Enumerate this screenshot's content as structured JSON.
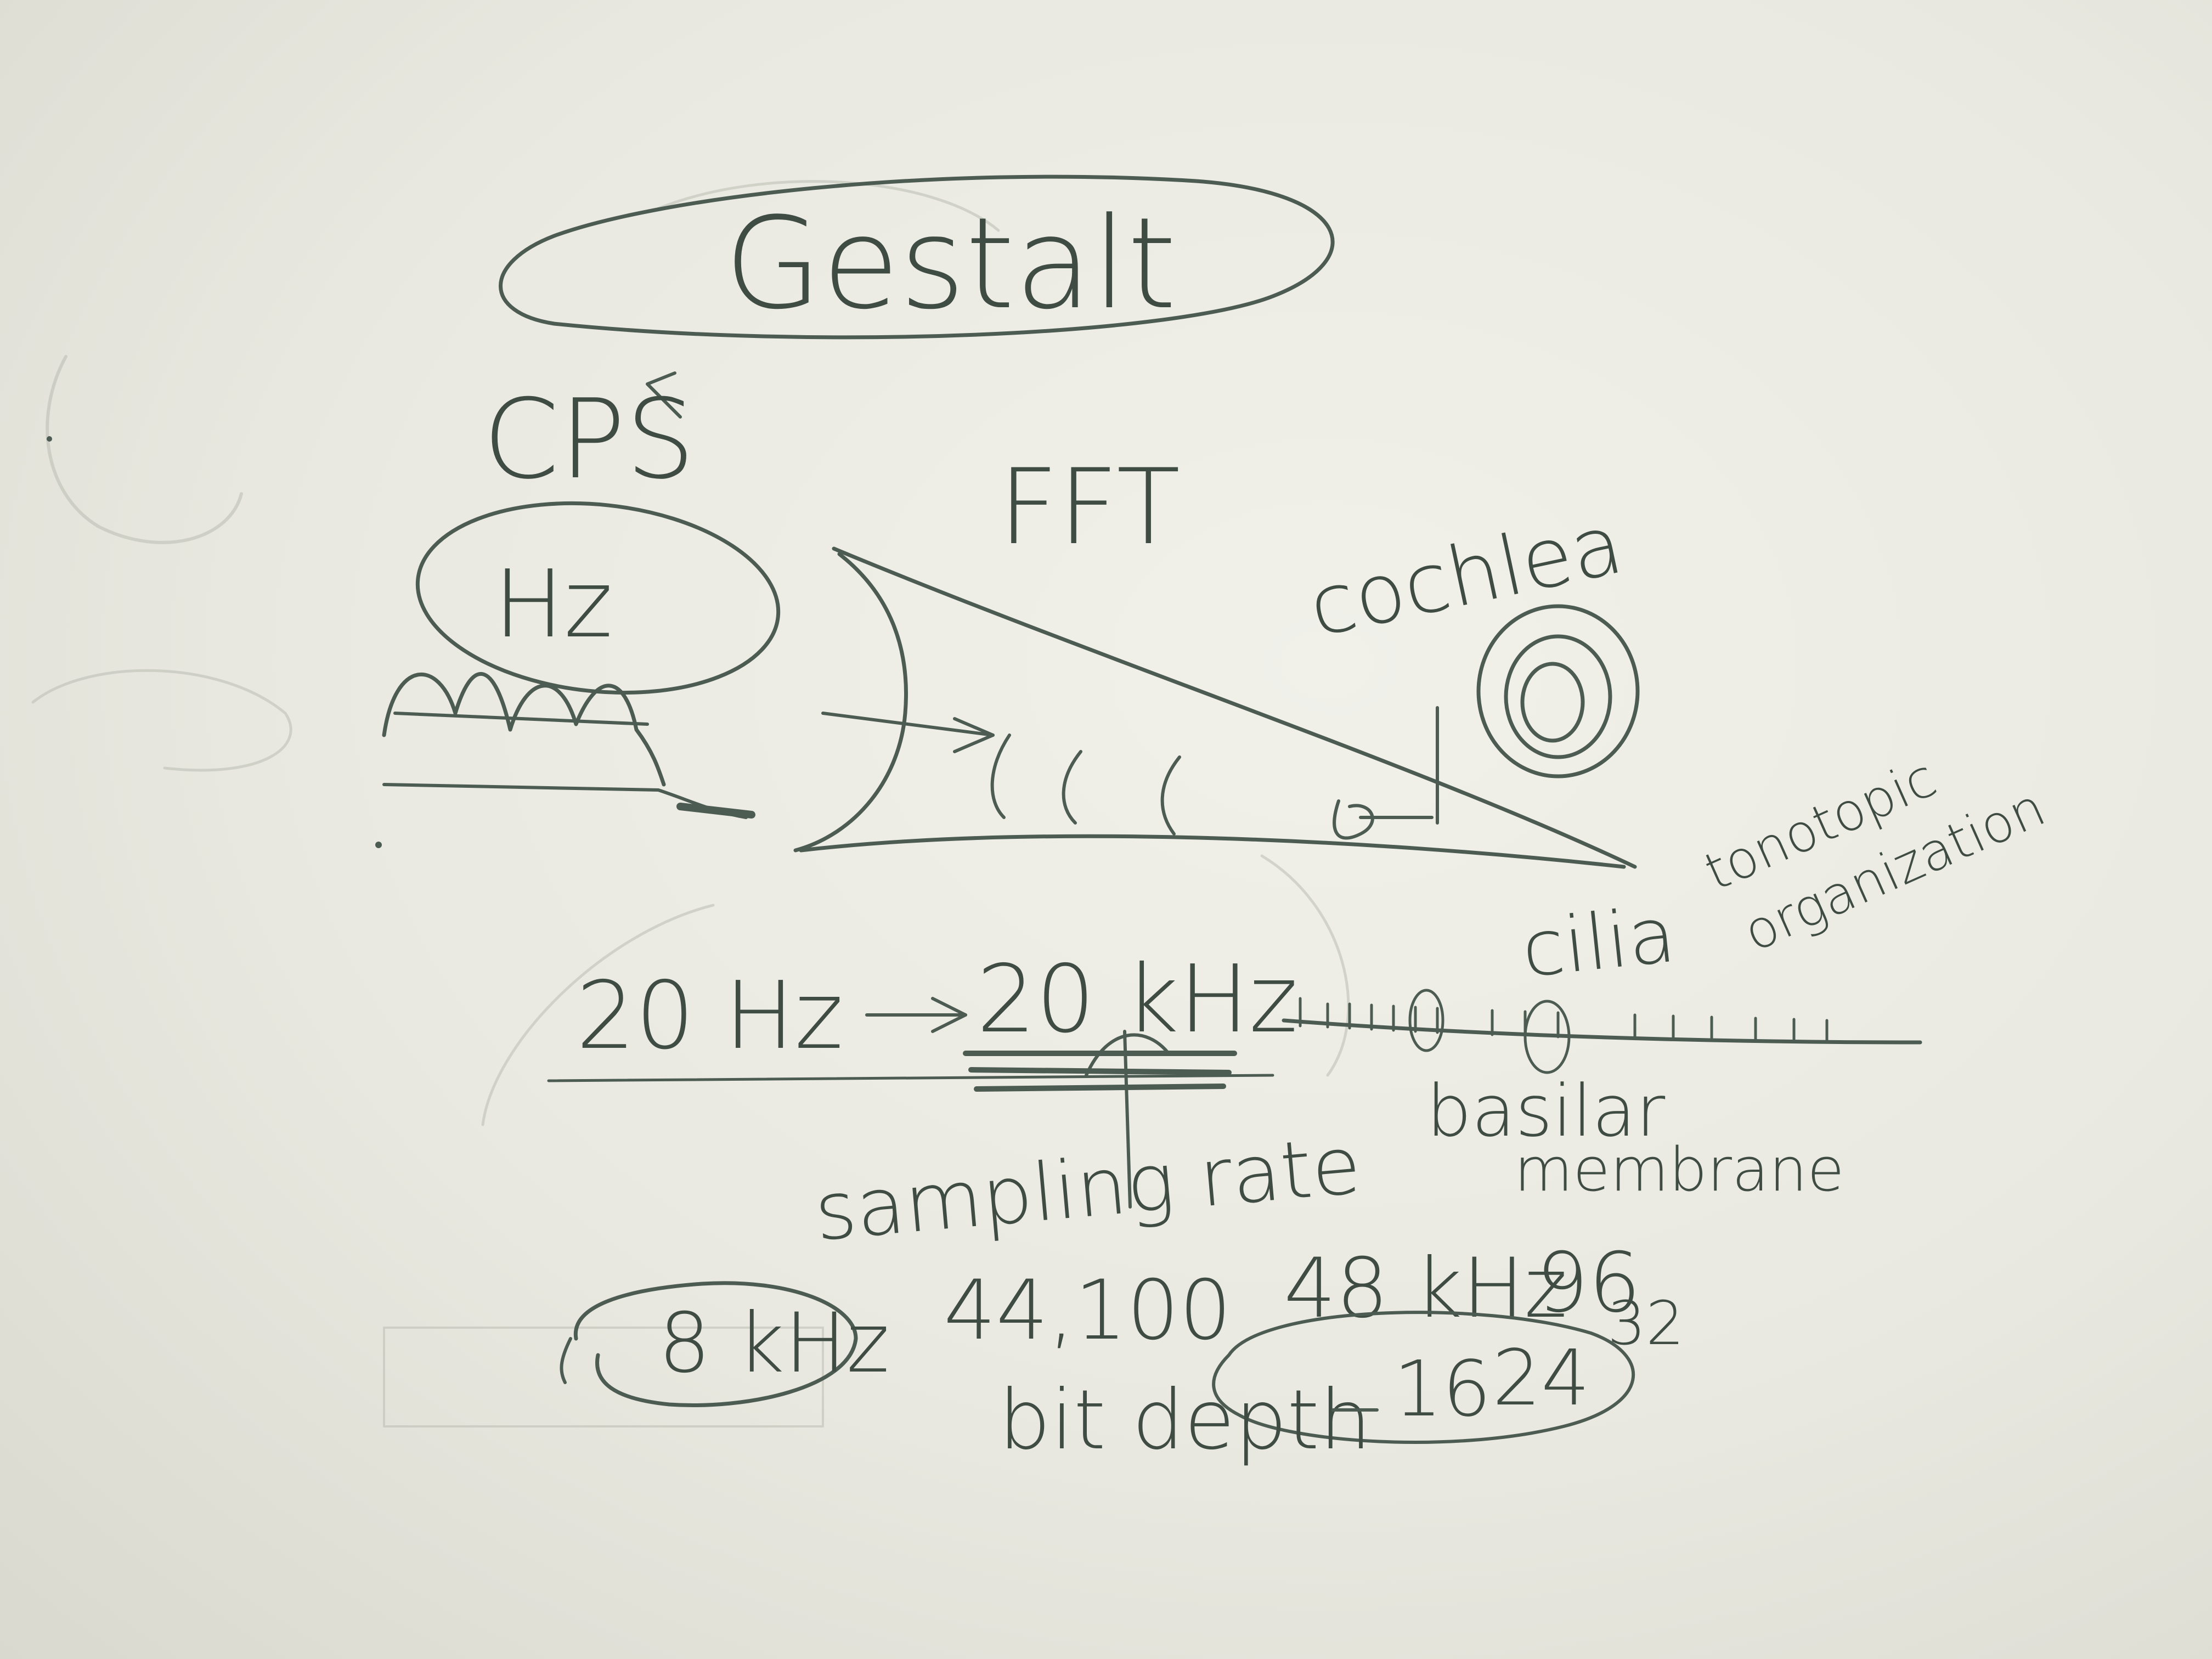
{
  "labels": {
    "gestalt": "Gestalt",
    "cps": "CPS",
    "hz": "Hz",
    "fft": "FFT",
    "cochlea": "cochlea",
    "tonotopic_1": "tonotopic",
    "tonotopic_2": "organization",
    "cilia": "cilia",
    "range_low": "20 Hz",
    "range_high": "20 kHz",
    "basilar_1": "basilar",
    "basilar_2": "membrane",
    "sampling_rate": "sampling rate",
    "rate_8": "8 kHz",
    "rate_44": "44,100",
    "rate_48": "48 kHz",
    "rate_96": "96",
    "bit_depth": "bit depth",
    "bits_16": "16",
    "bits_24": "24",
    "bits_32": "32"
  },
  "colors": {
    "ink": "#4d5c52",
    "board": "#ececE4",
    "ghost": "#b9bdb2"
  }
}
